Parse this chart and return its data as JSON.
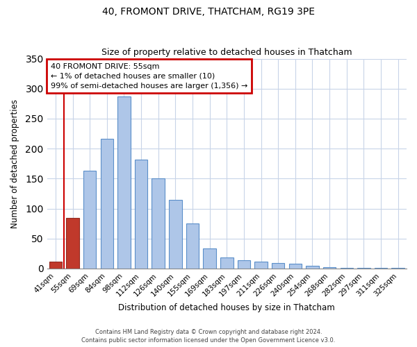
{
  "title": "40, FROMONT DRIVE, THATCHAM, RG19 3PE",
  "subtitle": "Size of property relative to detached houses in Thatcham",
  "xlabel": "Distribution of detached houses by size in Thatcham",
  "ylabel": "Number of detached properties",
  "bar_labels": [
    "41sqm",
    "55sqm",
    "69sqm",
    "84sqm",
    "98sqm",
    "112sqm",
    "126sqm",
    "140sqm",
    "155sqm",
    "169sqm",
    "183sqm",
    "197sqm",
    "211sqm",
    "226sqm",
    "240sqm",
    "254sqm",
    "268sqm",
    "282sqm",
    "297sqm",
    "311sqm",
    "325sqm"
  ],
  "bar_values": [
    11,
    84,
    163,
    216,
    287,
    182,
    150,
    114,
    75,
    34,
    18,
    14,
    12,
    9,
    8,
    5,
    2,
    1,
    1,
    1,
    1
  ],
  "red_bar_indices": [
    0,
    1
  ],
  "red_bar_color": "#c0392b",
  "red_bar_edge": "#922b21",
  "normal_color": "#aec6e8",
  "normal_edge_color": "#5b8fc9",
  "ylim": [
    0,
    350
  ],
  "yticks": [
    0,
    50,
    100,
    150,
    200,
    250,
    300,
    350
  ],
  "annotation_title": "40 FROMONT DRIVE: 55sqm",
  "annotation_line1": "← 1% of detached houses are smaller (10)",
  "annotation_line2": "99% of semi-detached houses are larger (1,356) →",
  "annotation_box_color": "#ffffff",
  "annotation_box_edge_color": "#cc0000",
  "red_vline_x": 1,
  "footer_line1": "Contains HM Land Registry data © Crown copyright and database right 2024.",
  "footer_line2": "Contains public sector information licensed under the Open Government Licence v3.0.",
  "background_color": "#ffffff",
  "grid_color": "#c8d4e8",
  "bar_width": 0.75
}
